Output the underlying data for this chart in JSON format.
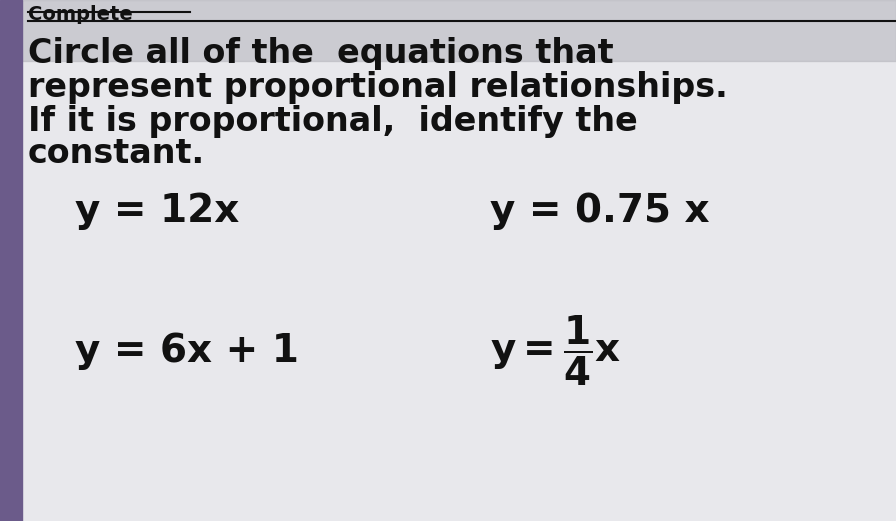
{
  "bg_color_top": "#c8c8d0",
  "bg_color_main": "#e8e8ec",
  "text_color": "#111111",
  "purple_strip_color": "#6b5b8a",
  "title_lines": [
    "Circle all of the  equations that",
    "represent proportional relationships.",
    "If it is proportional,  identify the",
    "constant."
  ],
  "top_text": "Complete",
  "eq1": "y = 12x",
  "eq2": "y = 0.75 x",
  "eq3": "y = 6x + 1",
  "eq4_prefix": "y = ",
  "eq4_num": "1",
  "eq4_den": "4",
  "eq4_suffix": "x",
  "title_fontsize": 24,
  "eq_fontsize": 28,
  "figw": 8.96,
  "figh": 5.21,
  "dpi": 100
}
